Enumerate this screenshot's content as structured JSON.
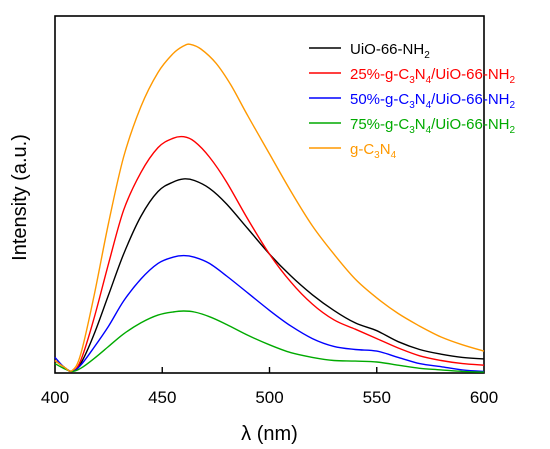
{
  "chart_data": {
    "type": "line",
    "xlabel": "λ (nm)",
    "ylabel": "Intensity (a.u.)",
    "xlim": [
      400,
      600
    ],
    "ylim": [
      0,
      100
    ],
    "xticks": [
      400,
      450,
      500,
      550,
      600
    ],
    "yticks_shown": false,
    "grid": false,
    "legend_position": "top-right",
    "series": [
      {
        "name": "UiO-66-NH2",
        "label_parts": [
          [
            "UiO-66-NH",
            ""
          ],
          [
            "2",
            "sub"
          ]
        ],
        "color": "#000000",
        "x": [
          400,
          404,
          408,
          412,
          418,
          425,
          432,
          440,
          448,
          455,
          460,
          465,
          472,
          480,
          490,
          500,
          510,
          520,
          530,
          540,
          550,
          560,
          570,
          580,
          590,
          600
        ],
        "y": [
          4,
          2,
          0.5,
          3,
          12,
          25,
          38,
          50,
          58,
          61,
          62,
          61.5,
          59,
          54,
          46,
          38,
          31,
          25,
          20,
          16,
          13.5,
          10,
          7.5,
          6,
          5,
          4.5
        ]
      },
      {
        "name": "25%-g-C3N4/UiO-66-NH2",
        "label_parts": [
          [
            "25%-g-C",
            ""
          ],
          [
            "3",
            "sub"
          ],
          [
            "N",
            ""
          ],
          [
            "4",
            "sub"
          ],
          [
            "/UiO-66-NH",
            ""
          ],
          [
            "2",
            "sub"
          ]
        ],
        "color": "#ff0000",
        "x": [
          400,
          404,
          408,
          412,
          418,
          425,
          432,
          440,
          448,
          455,
          460,
          465,
          472,
          480,
          490,
          500,
          510,
          520,
          530,
          540,
          550,
          560,
          570,
          580,
          590,
          600
        ],
        "y": [
          4,
          2,
          0.5,
          4,
          17,
          35,
          52,
          64,
          72,
          75,
          75.5,
          74,
          69,
          61,
          49,
          38,
          29,
          22,
          17,
          14,
          11,
          8,
          5.5,
          4,
          3,
          2.5
        ]
      },
      {
        "name": "50%-g-C3N4/UiO-66-NH2",
        "label_parts": [
          [
            "50%-g-C",
            ""
          ],
          [
            "3",
            "sub"
          ],
          [
            "N",
            ""
          ],
          [
            "4",
            "sub"
          ],
          [
            "/UiO-66-NH",
            ""
          ],
          [
            "2",
            "sub"
          ]
        ],
        "color": "#0000ff",
        "x": [
          400,
          404,
          408,
          412,
          418,
          425,
          432,
          440,
          448,
          455,
          460,
          465,
          472,
          480,
          490,
          500,
          510,
          520,
          530,
          540,
          550,
          560,
          570,
          580,
          590,
          600
        ],
        "y": [
          5,
          2,
          0.5,
          2.5,
          8,
          15,
          23,
          30,
          35,
          37,
          37.5,
          37,
          35,
          31,
          25.5,
          20,
          15,
          11,
          8.5,
          7.5,
          7,
          5,
          3,
          2,
          1,
          0.5
        ]
      },
      {
        "name": "75%-g-C3N4/UiO-66-NH2",
        "label_parts": [
          [
            "75%-g-C",
            ""
          ],
          [
            "3",
            "sub"
          ],
          [
            "N",
            ""
          ],
          [
            "4",
            "sub"
          ],
          [
            "/UiO-66-NH",
            ""
          ],
          [
            "2",
            "sub"
          ]
        ],
        "color": "#00aa00",
        "x": [
          400,
          404,
          408,
          412,
          418,
          425,
          432,
          440,
          448,
          455,
          460,
          465,
          472,
          480,
          490,
          500,
          510,
          520,
          530,
          540,
          550,
          560,
          570,
          580,
          590,
          600
        ],
        "y": [
          3,
          1.5,
          0.5,
          1.5,
          4.5,
          8.5,
          12.5,
          16,
          18.5,
          19.5,
          19.8,
          19.5,
          18,
          15.5,
          12,
          9,
          6.5,
          5,
          4,
          3.8,
          3.5,
          2.5,
          1.5,
          1,
          0.5,
          0.3
        ]
      },
      {
        "name": "g-C3N4",
        "label_parts": [
          [
            "g-C",
            ""
          ],
          [
            "3",
            "sub"
          ],
          [
            "N",
            ""
          ],
          [
            "4",
            "sub"
          ]
        ],
        "color": "#ff9900",
        "x": [
          400,
          404,
          408,
          412,
          418,
          425,
          432,
          440,
          448,
          455,
          460,
          463,
          468,
          475,
          482,
          490,
          500,
          510,
          520,
          530,
          540,
          550,
          560,
          570,
          580,
          590,
          600
        ],
        "y": [
          4,
          2,
          0.8,
          6,
          24,
          48,
          69,
          85,
          96,
          102,
          104.5,
          105,
          103.5,
          99,
          92,
          82,
          70,
          58,
          47,
          38,
          30,
          24,
          19,
          15,
          11.5,
          9,
          7
        ]
      }
    ]
  }
}
